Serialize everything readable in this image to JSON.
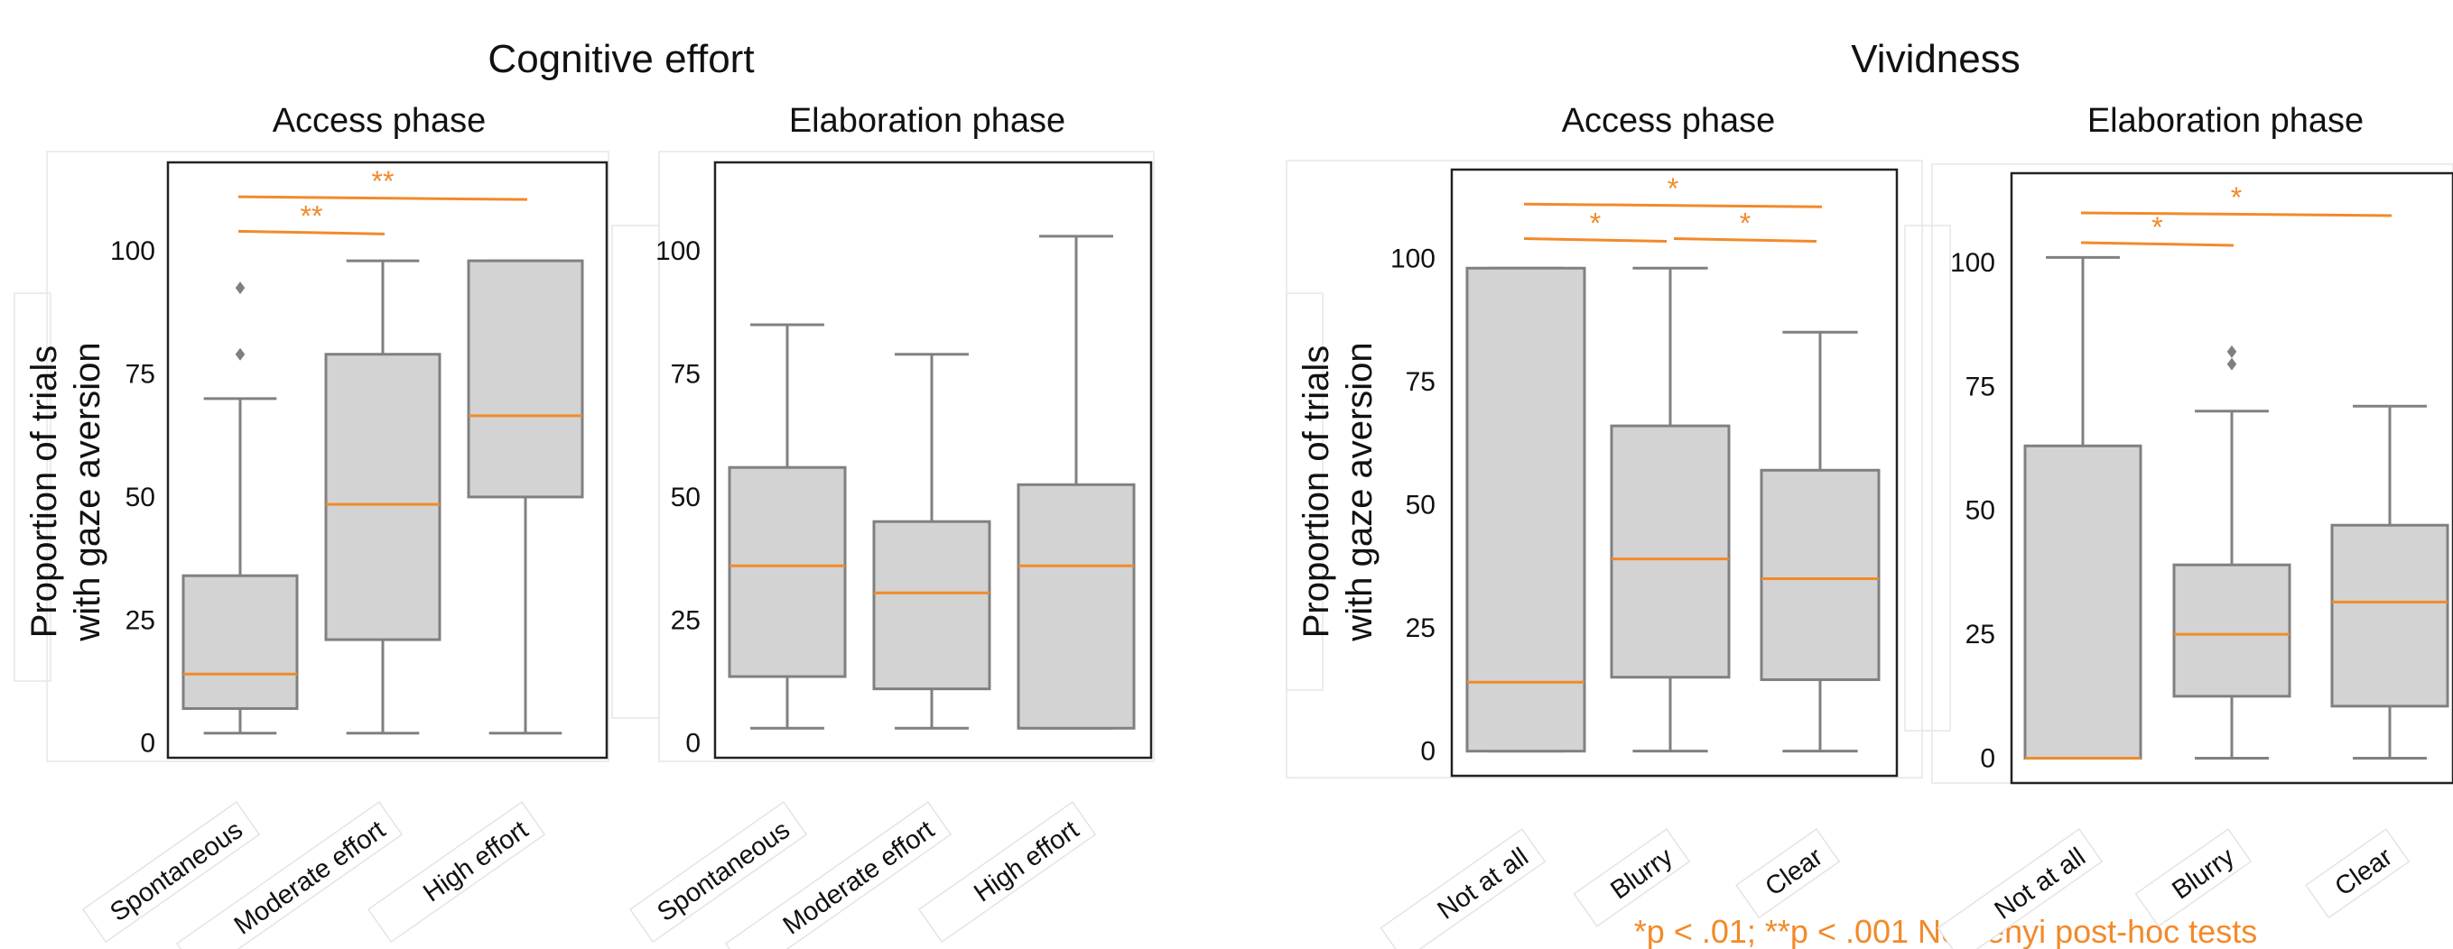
{
  "colors": {
    "box_fill": "#d3d3d3",
    "box_edge": "#808080",
    "median": "#f28a2a",
    "annotation": "#f28a2a",
    "frame": "#222222"
  },
  "footnote": "*p < .01; **p < .001 Nemenyi  post-hoc tests",
  "chart_data": [
    {
      "type": "box",
      "title": "Cognitive effort",
      "subtitle": "Access phase",
      "ylabel": [
        "Proportion of trials",
        "with gaze aversion"
      ],
      "ylim": [
        -3,
        118
      ],
      "yticks": [
        "0",
        "25",
        "50",
        "75",
        "100"
      ],
      "categories": [
        "Spontaneous",
        "Moderate effort",
        "High effort"
      ],
      "boxes": [
        {
          "q1": 7,
          "median": 14,
          "q3": 34,
          "whislo": 2,
          "whishi": 70,
          "fliers": [
            79,
            92.5
          ]
        },
        {
          "q1": 21,
          "median": 48.5,
          "q3": 79,
          "whislo": 2,
          "whishi": 98,
          "fliers": []
        },
        {
          "q1": 50,
          "median": 66.5,
          "q3": 98,
          "whislo": 2,
          "whishi": 98,
          "fliers": []
        }
      ],
      "significance": [
        {
          "from": 0,
          "to": 1,
          "label": "**",
          "level": 104
        },
        {
          "from": 0,
          "to": 2,
          "label": "**",
          "level": 111
        }
      ]
    },
    {
      "type": "box",
      "subtitle": "Elaboration phase",
      "ylim": [
        -3,
        118
      ],
      "yticks": [
        "0",
        "25",
        "50",
        "75",
        "100"
      ],
      "categories": [
        "Spontaneous",
        "Moderate effort",
        "High effort"
      ],
      "boxes": [
        {
          "q1": 13.5,
          "median": 36,
          "q3": 56,
          "whislo": 3,
          "whishi": 85,
          "fliers": []
        },
        {
          "q1": 11,
          "median": 30.5,
          "q3": 45,
          "whislo": 3,
          "whishi": 79,
          "fliers": []
        },
        {
          "q1": 3,
          "median": 36,
          "q3": 52.5,
          "whislo": 3,
          "whishi": 103,
          "fliers": []
        }
      ],
      "significance": []
    },
    {
      "type": "box",
      "title": "Vividness",
      "subtitle": "Access phase",
      "ylabel": [
        "Proportion of trials",
        "with gaze aversion"
      ],
      "ylim": [
        -5,
        118
      ],
      "yticks": [
        "0",
        "25",
        "50",
        "75",
        "100"
      ],
      "categories": [
        "Not at all",
        "Blurry",
        "Clear"
      ],
      "boxes": [
        {
          "q1": 0,
          "median": 14,
          "q3": 98,
          "whislo": 0,
          "whishi": 98,
          "fliers": []
        },
        {
          "q1": 15,
          "median": 39,
          "q3": 66,
          "whislo": 0,
          "whishi": 98,
          "fliers": []
        },
        {
          "q1": 14.5,
          "median": 35,
          "q3": 57,
          "whislo": 0,
          "whishi": 85,
          "fliers": []
        }
      ],
      "significance": [
        {
          "from": 0,
          "to": 1,
          "label": "*",
          "level": 104
        },
        {
          "from": 1,
          "to": 2,
          "label": "*",
          "level": 104
        },
        {
          "from": 0,
          "to": 2,
          "label": "*",
          "level": 111
        }
      ]
    },
    {
      "type": "box",
      "subtitle": "Elaboration phase",
      "ylim": [
        -5,
        118
      ],
      "yticks": [
        "0",
        "25",
        "50",
        "75",
        "100"
      ],
      "categories": [
        "Not at all",
        "Blurry",
        "Clear"
      ],
      "boxes": [
        {
          "q1": 0,
          "median": 0,
          "q3": 63,
          "whislo": 0,
          "whishi": 101,
          "fliers": []
        },
        {
          "q1": 12.5,
          "median": 25,
          "q3": 39,
          "whislo": 0,
          "whishi": 70,
          "fliers": [
            79.5,
            82
          ]
        },
        {
          "q1": 10.5,
          "median": 31.5,
          "q3": 47,
          "whislo": 0,
          "whishi": 71,
          "fliers": []
        }
      ],
      "significance": [
        {
          "from": 0,
          "to": 1,
          "label": "*",
          "level": 104
        },
        {
          "from": 0,
          "to": 2,
          "label": "*",
          "level": 110
        }
      ]
    }
  ]
}
